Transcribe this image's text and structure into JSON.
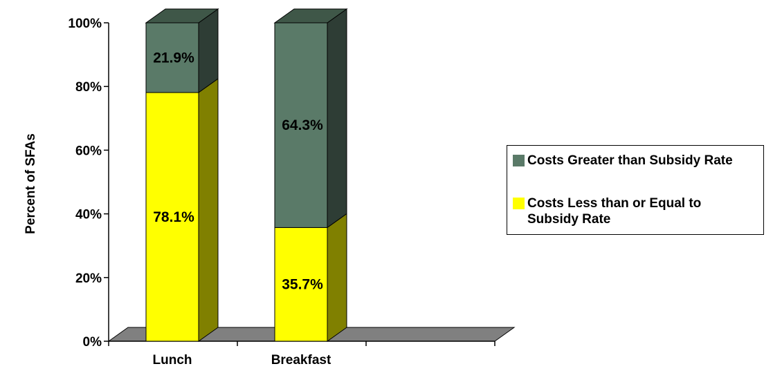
{
  "chart_data": {
    "type": "bar",
    "stacked": true,
    "three_d": true,
    "ylabel": "Percent of SFAs",
    "ylim": [
      0,
      100
    ],
    "y_ticks": [
      "0%",
      "20%",
      "40%",
      "60%",
      "80%",
      "100%"
    ],
    "categories": [
      "Lunch",
      "Breakfast"
    ],
    "series": [
      {
        "name": "Costs Less than or Equal to Subsidy Rate",
        "values": [
          78.1,
          35.7
        ],
        "labels": [
          "78.1%",
          "35.7%"
        ],
        "color": "#ffff00",
        "side_color": "#808000",
        "top_color": "#e6e600"
      },
      {
        "name": "Costs Greater than Subsidy Rate",
        "values": [
          21.9,
          64.3
        ],
        "labels": [
          "21.9%",
          "64.3%"
        ],
        "color": "#5a7a68",
        "side_color": "#2e3d35",
        "top_color": "#3f5748"
      }
    ],
    "floor_color": "#808080",
    "grid": false,
    "legend_position": "right"
  }
}
